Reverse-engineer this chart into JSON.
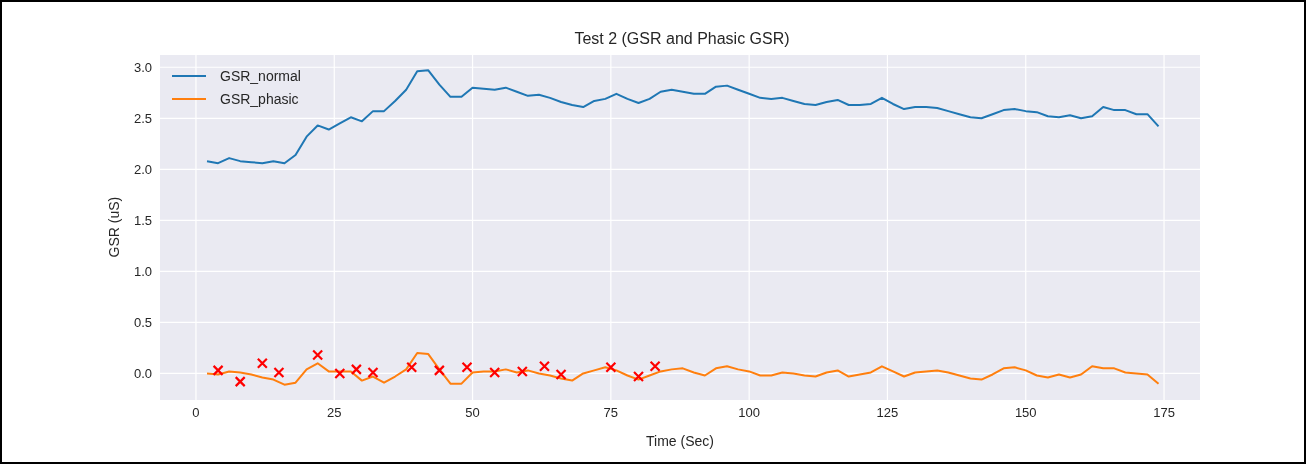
{
  "chart_data": {
    "type": "line",
    "title": "Test 2 (GSR and Phasic GSR)",
    "xlabel": "Time (Sec)",
    "ylabel": "GSR (uS)",
    "xlim": [
      -6.5,
      181.5
    ],
    "xticks": [
      0,
      25,
      50,
      75,
      100,
      125,
      150,
      175
    ],
    "ylim": [
      -0.26,
      3.12
    ],
    "yticks": [
      {
        "value": 0,
        "label": "0.0"
      },
      0.5,
      {
        "value": 1,
        "label": "1.0"
      },
      1.5,
      {
        "value": 2,
        "label": "2.0"
      },
      2.5,
      {
        "value": 3,
        "label": "3.0"
      }
    ],
    "grid": true,
    "legend": "top left",
    "series": [
      {
        "name": "GSR_normal",
        "color": "#1f77b4",
        "x": [
          2,
          4,
          6,
          8,
          10,
          12,
          14,
          16,
          18,
          20,
          22,
          24,
          26,
          28,
          30,
          32,
          34,
          36,
          38,
          40,
          42,
          44,
          46,
          48,
          50,
          52,
          54,
          56,
          58,
          60,
          62,
          64,
          66,
          68,
          70,
          72,
          74,
          76,
          78,
          80,
          82,
          84,
          86,
          88,
          90,
          92,
          94,
          96,
          98,
          100,
          102,
          104,
          106,
          108,
          110,
          112,
          114,
          116,
          118,
          120,
          122,
          124,
          126,
          128,
          130,
          132,
          134,
          136,
          138,
          140,
          142,
          144,
          146,
          148,
          150,
          152,
          154,
          156,
          158,
          160,
          162,
          164,
          166,
          168,
          170,
          172,
          174
        ],
        "values": [
          2.08,
          2.06,
          2.11,
          2.08,
          2.07,
          2.06,
          2.08,
          2.06,
          2.14,
          2.32,
          2.43,
          2.39,
          2.45,
          2.51,
          2.47,
          2.57,
          2.57,
          2.67,
          2.78,
          2.96,
          2.97,
          2.83,
          2.71,
          2.71,
          2.8,
          2.79,
          2.78,
          2.8,
          2.76,
          2.72,
          2.73,
          2.7,
          2.66,
          2.63,
          2.61,
          2.67,
          2.69,
          2.74,
          2.69,
          2.65,
          2.69,
          2.76,
          2.78,
          2.76,
          2.74,
          2.74,
          2.81,
          2.82,
          2.78,
          2.74,
          2.7,
          2.69,
          2.7,
          2.67,
          2.64,
          2.63,
          2.66,
          2.68,
          2.63,
          2.63,
          2.64,
          2.7,
          2.64,
          2.59,
          2.61,
          2.61,
          2.6,
          2.57,
          2.54,
          2.51,
          2.5,
          2.54,
          2.58,
          2.59,
          2.57,
          2.56,
          2.52,
          2.51,
          2.53,
          2.5,
          2.52,
          2.61,
          2.58,
          2.58,
          2.54,
          2.54,
          2.42
        ]
      },
      {
        "name": "GSR_phasic",
        "color": "#ff7f0e",
        "x": [
          2,
          4,
          6,
          8,
          10,
          12,
          14,
          16,
          18,
          20,
          22,
          24,
          26,
          28,
          30,
          32,
          34,
          36,
          38,
          40,
          42,
          44,
          46,
          48,
          50,
          52,
          54,
          56,
          58,
          60,
          62,
          64,
          66,
          68,
          70,
          72,
          74,
          76,
          78,
          80,
          82,
          84,
          86,
          88,
          90,
          92,
          94,
          96,
          98,
          100,
          102,
          104,
          106,
          108,
          110,
          112,
          114,
          116,
          118,
          120,
          122,
          124,
          126,
          128,
          130,
          132,
          134,
          136,
          138,
          140,
          142,
          144,
          146,
          148,
          150,
          152,
          154,
          156,
          158,
          160,
          162,
          164,
          166,
          168,
          170,
          172,
          174
        ],
        "values": [
          0.0,
          -0.01,
          0.02,
          0.01,
          -0.01,
          -0.04,
          -0.06,
          -0.11,
          -0.09,
          0.04,
          0.1,
          0.02,
          0.02,
          0.02,
          -0.07,
          -0.03,
          -0.09,
          -0.03,
          0.04,
          0.2,
          0.19,
          0.04,
          -0.1,
          -0.1,
          0.01,
          0.02,
          0.02,
          0.04,
          0.01,
          0.03,
          0.0,
          -0.02,
          -0.05,
          -0.07,
          0.0,
          0.03,
          0.06,
          0.03,
          -0.02,
          -0.06,
          -0.02,
          0.02,
          0.04,
          0.05,
          0.01,
          -0.02,
          0.05,
          0.07,
          0.04,
          0.02,
          -0.02,
          -0.02,
          0.01,
          0.0,
          -0.02,
          -0.03,
          0.01,
          0.03,
          -0.03,
          -0.01,
          0.01,
          0.07,
          0.02,
          -0.03,
          0.01,
          0.02,
          0.03,
          0.01,
          -0.02,
          -0.05,
          -0.06,
          -0.01,
          0.05,
          0.06,
          0.03,
          -0.02,
          -0.04,
          -0.01,
          -0.04,
          -0.01,
          0.07,
          0.05,
          0.05,
          0.01,
          0.0,
          -0.01,
          -0.1
        ]
      },
      {
        "color": "#ff0000",
        "type": "scatter",
        "marker": "cross",
        "x": [
          4,
          8,
          12,
          15,
          22,
          26,
          29,
          32,
          39,
          44,
          49,
          54,
          59,
          63,
          66,
          75,
          80,
          83
        ],
        "values": [
          0.03,
          -0.08,
          0.1,
          0.01,
          0.18,
          0.0,
          0.04,
          0.01,
          0.06,
          0.03,
          0.06,
          0.01,
          0.02,
          0.07,
          -0.01,
          0.06,
          -0.03,
          0.07
        ]
      }
    ]
  }
}
